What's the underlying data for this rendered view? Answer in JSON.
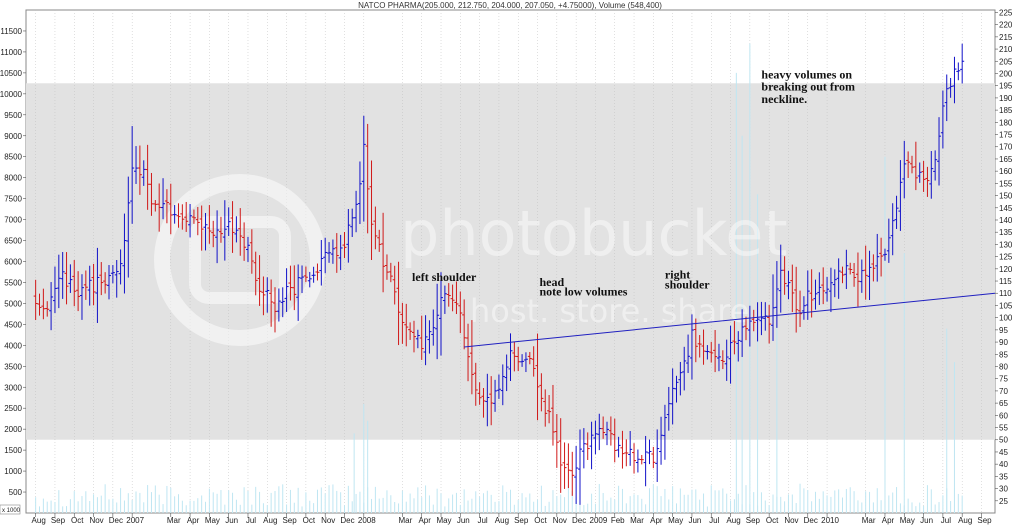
{
  "chart_data": {
    "type": "bar",
    "title": "NATCO PHARMA(205.000, 212.750, 204.000, 207.050, +4.75000), Volume (548,400)",
    "left_axis": {
      "label": "x 1000",
      "range": [
        0,
        12000
      ],
      "ticks": [
        "500",
        "1000",
        "1500",
        "2000",
        "2500",
        "3000",
        "3500",
        "4000",
        "4500",
        "5000",
        "5500",
        "6000",
        "6500",
        "7000",
        "7500",
        "8000",
        "8500",
        "9000",
        "9500",
        "10000",
        "10500",
        "11000",
        "11500"
      ]
    },
    "right_axis": {
      "range": [
        20,
        226
      ],
      "ticks": [
        "25",
        "30",
        "35",
        "40",
        "45",
        "50",
        "55",
        "60",
        "65",
        "70",
        "75",
        "80",
        "85",
        "90",
        "95",
        "100",
        "105",
        "110",
        "115",
        "120",
        "125",
        "130",
        "135",
        "140",
        "145",
        "150",
        "155",
        "160",
        "165",
        "170",
        "175",
        "180",
        "185",
        "190",
        "195",
        "200",
        "205",
        "210",
        "215",
        "220",
        "225"
      ]
    },
    "x_labels": [
      {
        "t": 0,
        "label": "Aug"
      },
      {
        "t": 1,
        "label": "Sep"
      },
      {
        "t": 2,
        "label": "Oct"
      },
      {
        "t": 3,
        "label": "Nov"
      },
      {
        "t": 4,
        "label": "Dec"
      },
      {
        "t": 5,
        "label": "2007"
      },
      {
        "t": 7,
        "label": "Mar"
      },
      {
        "t": 8,
        "label": "Apr"
      },
      {
        "t": 9,
        "label": "May"
      },
      {
        "t": 10,
        "label": "Jun"
      },
      {
        "t": 11,
        "label": "Jul"
      },
      {
        "t": 12,
        "label": "Aug"
      },
      {
        "t": 13,
        "label": "Sep"
      },
      {
        "t": 14,
        "label": "Oct"
      },
      {
        "t": 15,
        "label": "Nov"
      },
      {
        "t": 16,
        "label": "Dec"
      },
      {
        "t": 17,
        "label": "2008"
      },
      {
        "t": 19,
        "label": "Mar"
      },
      {
        "t": 20,
        "label": "Apr"
      },
      {
        "t": 21,
        "label": "May"
      },
      {
        "t": 22,
        "label": "Jun"
      },
      {
        "t": 23,
        "label": "Jul"
      },
      {
        "t": 24,
        "label": "Aug"
      },
      {
        "t": 25,
        "label": "Sep"
      },
      {
        "t": 26,
        "label": "Oct"
      },
      {
        "t": 27,
        "label": "Nov"
      },
      {
        "t": 28,
        "label": "Dec"
      },
      {
        "t": 29,
        "label": "2009"
      },
      {
        "t": 30,
        "label": "Feb"
      },
      {
        "t": 31,
        "label": "Mar"
      },
      {
        "t": 32,
        "label": "Apr"
      },
      {
        "t": 33,
        "label": "May"
      },
      {
        "t": 34,
        "label": "Jun"
      },
      {
        "t": 35,
        "label": "Jul"
      },
      {
        "t": 36,
        "label": "Aug"
      },
      {
        "t": 37,
        "label": "Sep"
      },
      {
        "t": 38,
        "label": "Oct"
      },
      {
        "t": 39,
        "label": "Nov"
      },
      {
        "t": 40,
        "label": "Dec"
      },
      {
        "t": 41,
        "label": "2010"
      },
      {
        "t": 43,
        "label": "Mar"
      },
      {
        "t": 44,
        "label": "Apr"
      },
      {
        "t": 45,
        "label": "May"
      },
      {
        "t": 46,
        "label": "Jun"
      },
      {
        "t": 47,
        "label": "Jul"
      },
      {
        "t": 48,
        "label": "Aug"
      },
      {
        "t": 49,
        "label": "Sep"
      }
    ],
    "x_range": [
      -0.5,
      49.7
    ],
    "price_keypoints": [
      [
        0.0,
        108
      ],
      [
        0.5,
        103
      ],
      [
        1.0,
        112
      ],
      [
        1.5,
        117
      ],
      [
        2.0,
        110
      ],
      [
        3.0,
        113
      ],
      [
        4.0,
        116
      ],
      [
        4.5,
        126
      ],
      [
        5.0,
        163
      ],
      [
        5.6,
        158
      ],
      [
        6.0,
        147
      ],
      [
        7.0,
        144
      ],
      [
        8.0,
        140
      ],
      [
        9.0,
        135
      ],
      [
        10.0,
        138
      ],
      [
        11.0,
        128
      ],
      [
        11.6,
        112
      ],
      [
        12.5,
        104
      ],
      [
        13.0,
        110
      ],
      [
        14.0,
        116
      ],
      [
        15.0,
        124
      ],
      [
        16.0,
        130
      ],
      [
        16.7,
        150
      ],
      [
        17.0,
        170
      ],
      [
        17.4,
        140
      ],
      [
        18.0,
        124
      ],
      [
        19.0,
        100
      ],
      [
        20.0,
        88
      ],
      [
        20.5,
        95
      ],
      [
        21.0,
        108
      ],
      [
        21.8,
        105
      ],
      [
        22.2,
        93
      ],
      [
        22.7,
        73
      ],
      [
        23.3,
        65
      ],
      [
        24.0,
        68
      ],
      [
        24.5,
        85
      ],
      [
        25.0,
        84
      ],
      [
        25.7,
        80
      ],
      [
        26.2,
        66
      ],
      [
        26.7,
        57
      ],
      [
        27.2,
        42
      ],
      [
        27.8,
        38
      ],
      [
        28.3,
        45
      ],
      [
        29.0,
        51
      ],
      [
        29.5,
        55
      ],
      [
        30.0,
        48
      ],
      [
        31.0,
        43
      ],
      [
        32.0,
        42
      ],
      [
        32.5,
        55
      ],
      [
        33.0,
        70
      ],
      [
        33.5,
        77
      ],
      [
        34.0,
        92
      ],
      [
        35.0,
        85
      ],
      [
        35.5,
        80
      ],
      [
        36.0,
        88
      ],
      [
        37.0,
        97
      ],
      [
        38.0,
        100
      ],
      [
        38.6,
        118
      ],
      [
        39.0,
        112
      ],
      [
        39.5,
        103
      ],
      [
        40.0,
        108
      ],
      [
        41.0,
        114
      ],
      [
        42.0,
        122
      ],
      [
        42.5,
        112
      ],
      [
        43.0,
        120
      ],
      [
        44.0,
        128
      ],
      [
        44.5,
        141
      ],
      [
        45.0,
        162
      ],
      [
        45.8,
        158
      ],
      [
        46.3,
        156
      ],
      [
        46.6,
        163
      ],
      [
        47.0,
        186
      ],
      [
        47.5,
        198
      ],
      [
        48.0,
        207
      ]
    ],
    "neckline": {
      "from": {
        "t": 22.2,
        "v": 88
      },
      "to": {
        "t": 49.7,
        "v": 110
      }
    },
    "shaded_band": {
      "from": 50,
      "to": 196
    },
    "volume_spikes": [
      {
        "t": 16.5,
        "v": 1900
      },
      {
        "t": 17.0,
        "v": 2600
      },
      {
        "t": 17.2,
        "v": 2200
      },
      {
        "t": 36.3,
        "v": 10500
      },
      {
        "t": 36.6,
        "v": 9000
      },
      {
        "t": 37.0,
        "v": 11200
      },
      {
        "t": 37.4,
        "v": 7600
      },
      {
        "t": 38.4,
        "v": 4500
      },
      {
        "t": 44.0,
        "v": 8500
      },
      {
        "t": 45.0,
        "v": 6200
      },
      {
        "t": 47.2,
        "v": 4400
      },
      {
        "t": 47.6,
        "v": 3600
      }
    ],
    "annotations": [
      {
        "text": "left shoulder",
        "t": 19.5,
        "v": 115
      },
      {
        "text": "head",
        "t": 26.1,
        "v": 113
      },
      {
        "text": "note low volumes",
        "t": 26.1,
        "v": 109
      },
      {
        "text": "right",
        "t": 32.6,
        "v": 116
      },
      {
        "text": "shoulder",
        "t": 32.6,
        "v": 112
      },
      {
        "text": "heavy volumes on",
        "t": 37.6,
        "v": 198
      },
      {
        "text": "breaking out from",
        "t": 37.6,
        "v": 193
      },
      {
        "text": "neckline.",
        "t": 37.6,
        "v": 188
      }
    ],
    "watermark": "photobucket",
    "watermark_sub": "host. store. share.",
    "colors": {
      "up": "#1010c8",
      "down": "#d01818",
      "neckline": "#2020c0",
      "band": "#e2e2e2",
      "volume": "#bfe6f2",
      "grid": "#c0c0c0"
    }
  }
}
